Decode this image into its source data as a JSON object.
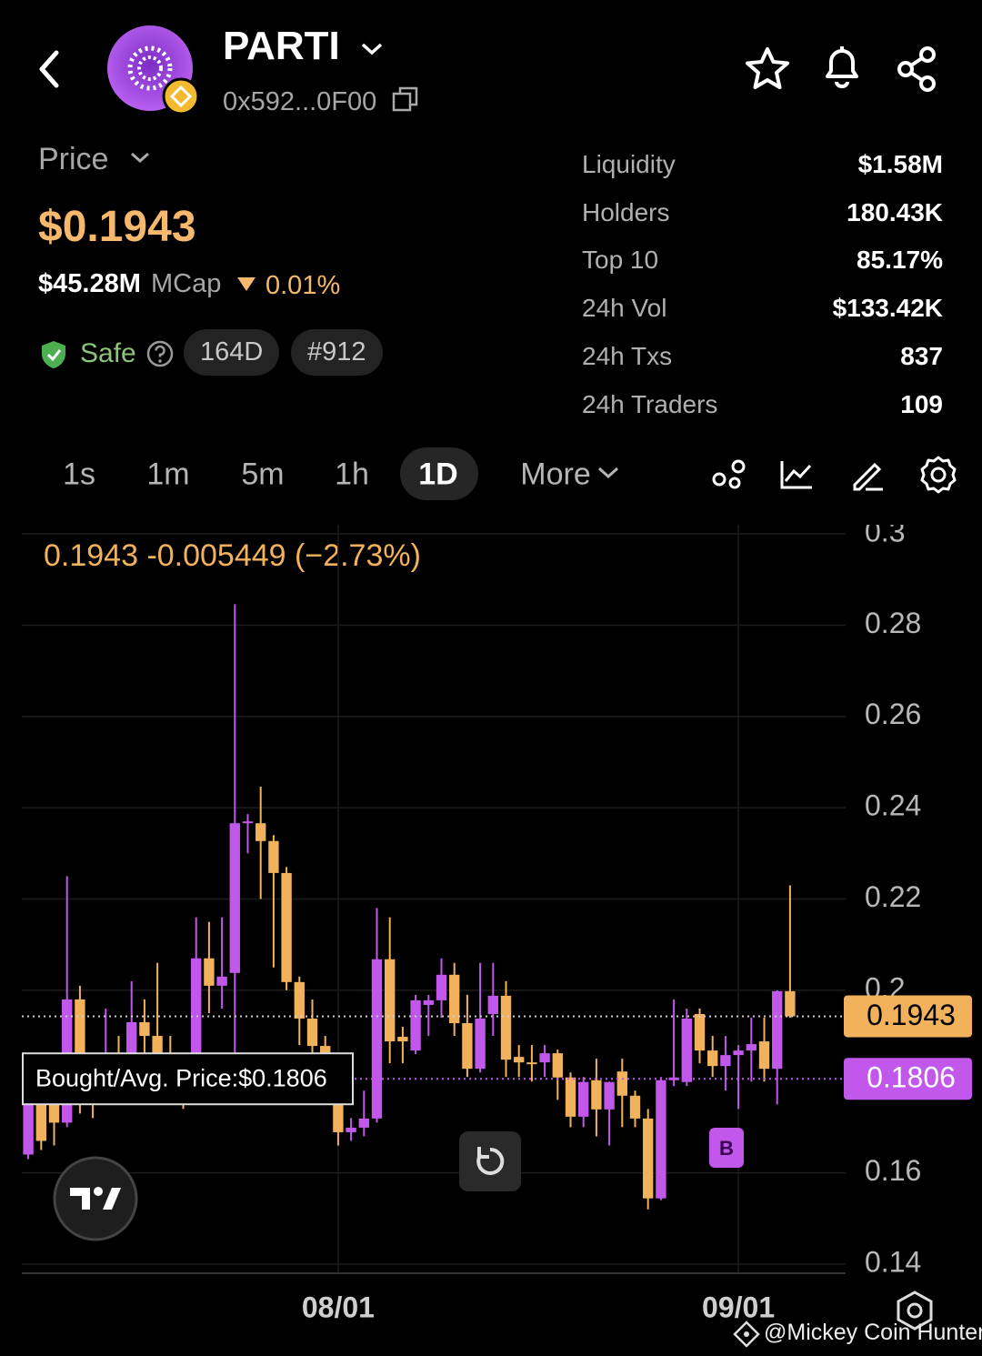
{
  "header": {
    "symbol": "PARTI",
    "address": "0x592...0F00"
  },
  "price": {
    "label": "Price",
    "value": "$0.1943",
    "mcap_value": "$45.28M",
    "mcap_label": "MCap",
    "change": "0.01%",
    "safety": "Safe",
    "age": "164D",
    "rank": "#912"
  },
  "stats": [
    [
      "Liquidity",
      "$1.58M"
    ],
    [
      "Holders",
      "180.43K"
    ],
    [
      "Top 10",
      "85.17%"
    ],
    [
      "24h Vol",
      "$133.42K"
    ],
    [
      "24h Txs",
      "837"
    ],
    [
      "24h Traders",
      "109"
    ]
  ],
  "timeframes": [
    "1s",
    "1m",
    "5m",
    "1h",
    "1D",
    "More"
  ],
  "chart_data": {
    "type": "candlestick",
    "legend_text": "0.1943  -0.005449 (−2.73%)",
    "x": [
      null,
      null,
      null,
      null,
      null,
      null,
      null,
      null,
      null,
      null,
      null,
      null,
      null,
      null,
      null,
      null,
      null,
      null,
      null,
      null,
      null,
      null,
      null,
      null,
      "08/01",
      null,
      null,
      null,
      null,
      null,
      null,
      null,
      null,
      null,
      null,
      null,
      null,
      null,
      null,
      null,
      null,
      null,
      null,
      null,
      null,
      null,
      null,
      null,
      null,
      null,
      null,
      null,
      null,
      null,
      null,
      "09/01",
      null,
      null,
      null,
      null
    ],
    "open": [
      0.164,
      0.176,
      0.176,
      0.171,
      0.198,
      0.176,
      0.176,
      0.185,
      0.184,
      0.193,
      0.19,
      0.185,
      0.178,
      0.176,
      0.207,
      0.201,
      0.2038,
      0.2366,
      0.2366,
      0.2327,
      0.2257,
      0.2018,
      0.1938,
      0.1878,
      0.1848,
      0.1689,
      0.1699,
      0.1719,
      0.2068,
      0.1898,
      0.1868,
      0.1968,
      0.1978,
      0.2034,
      0.1928,
      0.1828,
      0.1948,
      0.1988,
      0.1854,
      0.1842,
      0.1842,
      0.1862,
      0.1809,
      0.1723,
      0.1803,
      0.1739,
      0.1822,
      0.1769,
      0.1719,
      0.1544,
      0.1803,
      0.1799,
      0.1948,
      0.1868,
      0.1834,
      0.1858,
      0.1868,
      0.1888,
      0.1828,
      0.1998
    ],
    "high": [
      0.178,
      0.178,
      0.18,
      0.225,
      0.201,
      0.18,
      0.196,
      0.19,
      0.202,
      0.198,
      0.206,
      0.19,
      0.182,
      0.216,
      0.215,
      0.216,
      0.2846,
      0.2386,
      0.2446,
      0.234,
      0.227,
      0.203,
      0.198,
      0.19,
      0.186,
      0.172,
      0.178,
      0.218,
      0.216,
      0.192,
      0.199,
      0.199,
      0.207,
      0.206,
      0.199,
      0.206,
      0.206,
      0.202,
      0.188,
      0.188,
      0.188,
      0.187,
      0.182,
      0.181,
      0.185,
      0.18,
      0.185,
      0.178,
      0.174,
      0.181,
      0.198,
      0.196,
      0.196,
      0.19,
      0.19,
      0.188,
      0.194,
      0.194,
      0.2,
      0.223
    ],
    "low": [
      0.163,
      0.165,
      0.166,
      0.17,
      0.173,
      0.172,
      0.175,
      0.178,
      0.182,
      0.186,
      0.176,
      0.175,
      0.174,
      0.176,
      0.195,
      0.196,
      0.18,
      0.23,
      0.22,
      0.205,
      0.2,
      0.188,
      0.183,
      0.18,
      0.166,
      0.167,
      0.168,
      0.171,
      0.184,
      0.184,
      0.186,
      0.19,
      0.194,
      0.19,
      0.181,
      0.182,
      0.19,
      0.181,
      0.181,
      0.18,
      0.181,
      0.176,
      0.17,
      0.17,
      0.168,
      0.166,
      0.17,
      0.17,
      0.152,
      0.154,
      0.179,
      0.179,
      0.184,
      0.181,
      0.178,
      0.174,
      0.18,
      0.18,
      0.175,
      0.194
    ],
    "close": [
      0.176,
      0.167,
      0.171,
      0.198,
      0.176,
      0.175,
      0.182,
      0.184,
      0.193,
      0.19,
      0.185,
      0.178,
      0.176,
      0.207,
      0.201,
      0.203,
      0.2366,
      0.237,
      0.2327,
      0.2257,
      0.2018,
      0.1938,
      0.1878,
      0.1858,
      0.1689,
      0.1699,
      0.1719,
      0.2068,
      0.1888,
      0.1888,
      0.1978,
      0.1978,
      0.2034,
      0.1928,
      0.1828,
      0.1938,
      0.1988,
      0.1848,
      0.1842,
      0.1838,
      0.1862,
      0.1809,
      0.1723,
      0.1799,
      0.1739,
      0.1799,
      0.1769,
      0.1719,
      0.1544,
      0.1803,
      0.1809,
      0.1938,
      0.1868,
      0.1834,
      0.1858,
      0.1868,
      0.1882,
      0.1828,
      0.1998,
      0.1943
    ],
    "up_color": "#c257ec",
    "down_color": "#f2b25c",
    "ylim": [
      0.138,
      0.302
    ],
    "yticks": [
      0.14,
      0.16,
      0.2,
      0.22,
      0.24,
      0.26,
      0.28,
      0.3
    ],
    "price_lines": [
      {
        "value": 0.1943,
        "color": "#f2b25c"
      },
      {
        "value": 0.1806,
        "color": "#c257ec"
      }
    ],
    "position_label": "Bought/Avg. Price:$0.1806",
    "marker_label": "B",
    "grid": true
  },
  "watermark": "@Mickey Coin Hunter"
}
